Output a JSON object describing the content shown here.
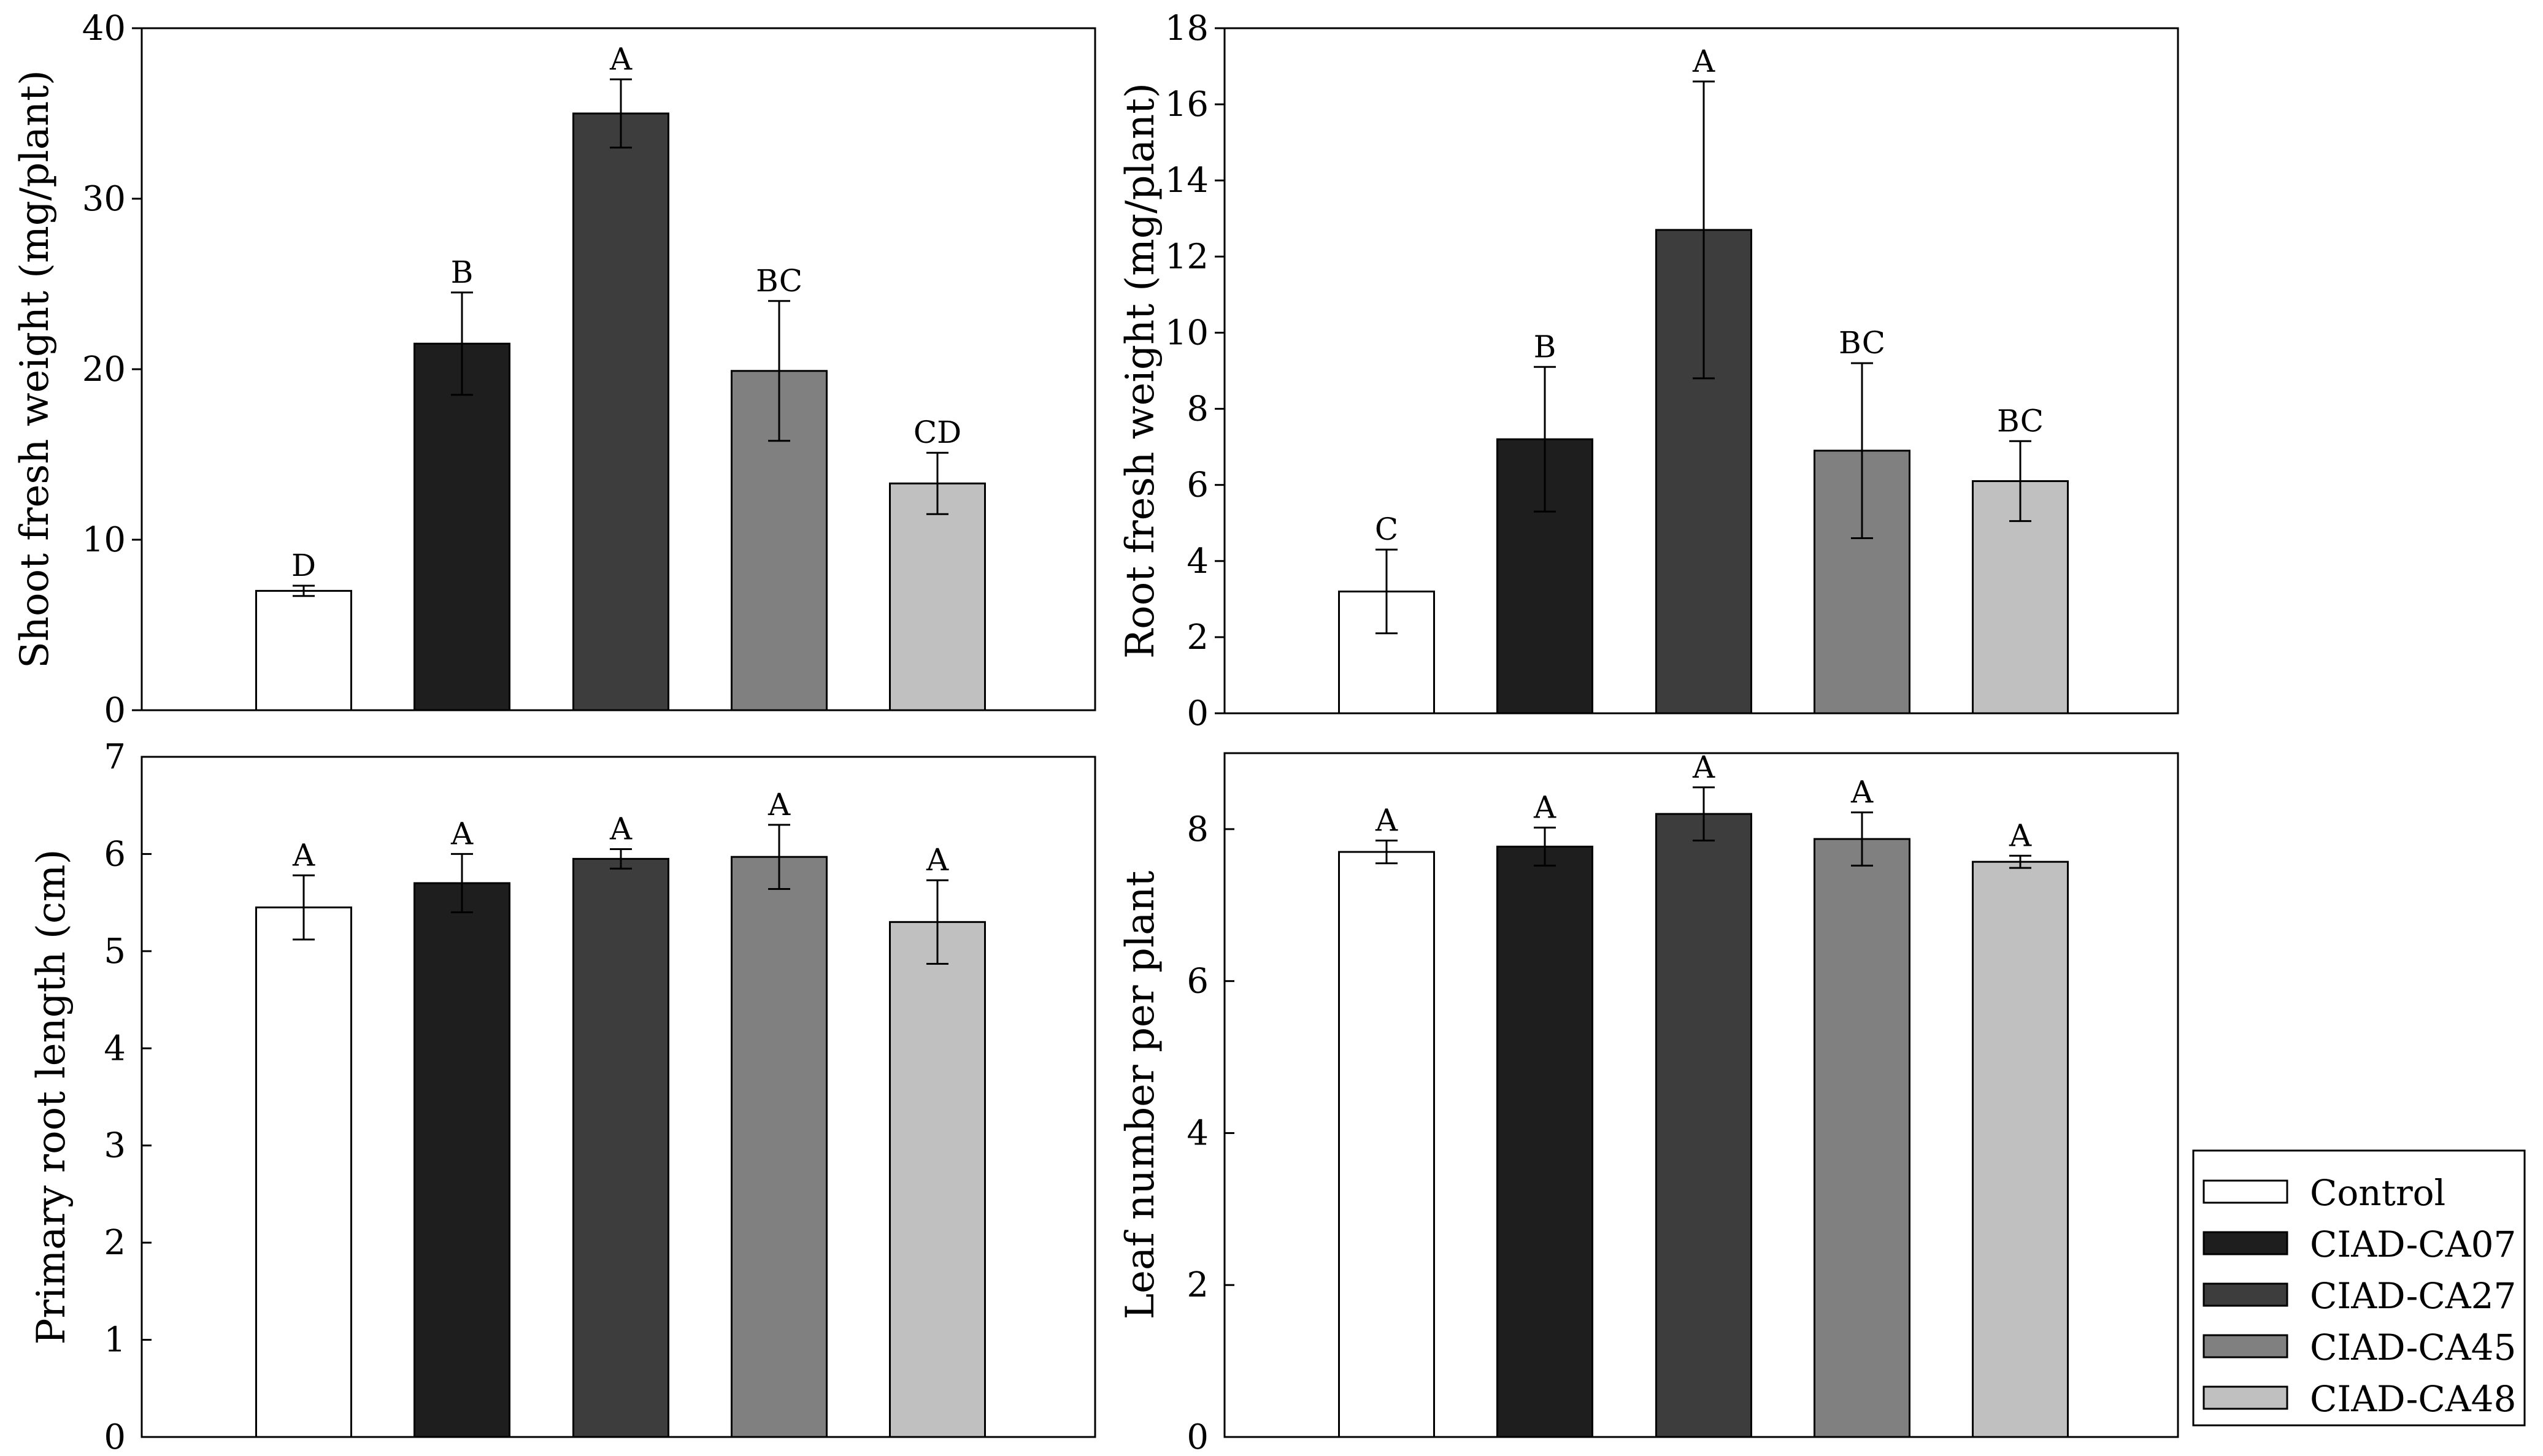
{
  "chart_data": [
    {
      "type": "bar",
      "ylabel": "Shoot fresh weight (mg/plant)",
      "ylim": [
        0,
        40
      ],
      "yticks": [
        0,
        10,
        20,
        30,
        40
      ],
      "categories": [
        "Control",
        "CIAD-CA07",
        "CIAD-CA27",
        "CIAD-CA45",
        "CIAD-CA48"
      ],
      "values": [
        7.0,
        21.5,
        35.0,
        19.9,
        13.3
      ],
      "errors": [
        0.3,
        3.0,
        2.0,
        4.1,
        1.8
      ],
      "letters": [
        "D",
        "B",
        "A",
        "BC",
        "CD"
      ]
    },
    {
      "type": "bar",
      "ylabel": "Root fresh weight (mg/plant)",
      "ylim": [
        0,
        18
      ],
      "yticks": [
        0,
        2,
        4,
        6,
        8,
        10,
        12,
        14,
        16,
        18
      ],
      "categories": [
        "Control",
        "CIAD-CA07",
        "CIAD-CA27",
        "CIAD-CA45",
        "CIAD-CA48"
      ],
      "values": [
        3.2,
        7.2,
        12.7,
        6.9,
        6.1
      ],
      "errors": [
        1.1,
        1.9,
        3.9,
        2.3,
        1.05
      ],
      "letters": [
        "C",
        "B",
        "A",
        "BC",
        "BC"
      ]
    },
    {
      "type": "bar",
      "ylabel": "Primary root length (cm)",
      "ylim": [
        0,
        7
      ],
      "yticks": [
        0,
        1,
        2,
        3,
        4,
        5,
        6,
        7
      ],
      "categories": [
        "Control",
        "CIAD-CA07",
        "CIAD-CA27",
        "CIAD-CA45",
        "CIAD-CA48"
      ],
      "values": [
        5.45,
        5.7,
        5.95,
        5.97,
        5.3
      ],
      "errors": [
        0.33,
        0.3,
        0.1,
        0.33,
        0.43
      ],
      "letters": [
        "A",
        "A",
        "A",
        "A",
        "A"
      ]
    },
    {
      "type": "bar",
      "ylabel": "Leaf number per plant",
      "ylim": [
        0,
        9
      ],
      "yticks": [
        0,
        2,
        4,
        6,
        8
      ],
      "categories": [
        "Control",
        "CIAD-CA07",
        "CIAD-CA27",
        "CIAD-CA45",
        "CIAD-CA48"
      ],
      "values": [
        7.7,
        7.77,
        8.2,
        7.87,
        7.57
      ],
      "errors": [
        0.15,
        0.25,
        0.35,
        0.35,
        0.08
      ],
      "letters": [
        "A",
        "A",
        "A",
        "A",
        "A"
      ]
    }
  ],
  "legend": {
    "position": "bottom-right",
    "items": [
      {
        "label": "Control",
        "color": "#ffffff"
      },
      {
        "label": "CIAD-CA07",
        "color": "#1e1e1e"
      },
      {
        "label": "CIAD-CA27",
        "color": "#3d3d3d"
      },
      {
        "label": "CIAD-CA45",
        "color": "#808080"
      },
      {
        "label": "CIAD-CA48",
        "color": "#c0c0c0"
      }
    ]
  }
}
